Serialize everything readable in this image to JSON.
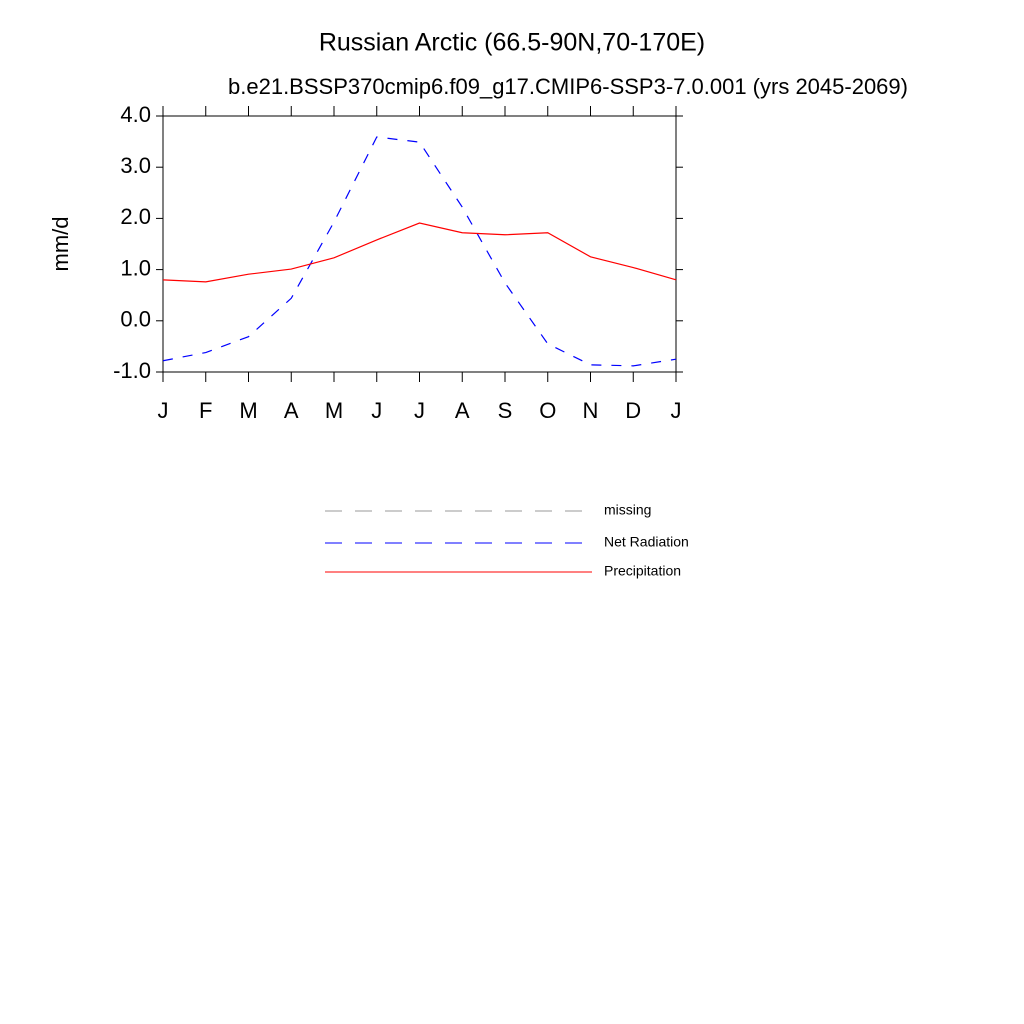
{
  "chart_data": {
    "type": "line",
    "title": "Russian Arctic (66.5-90N,70-170E)",
    "subtitle": "b.e21.BSSP370cmip6.f09_g17.CMIP6-SSP3-7.0.001 (yrs 2045-2069)",
    "y_label": "mm/d",
    "categories": [
      "J",
      "F",
      "M",
      "A",
      "M",
      "J",
      "J",
      "A",
      "S",
      "O",
      "N",
      "D",
      "J"
    ],
    "series": [
      {
        "name": "missing",
        "color": "#999999",
        "line_style": "dashed",
        "values": [
          null,
          null,
          null,
          null,
          null,
          null,
          null,
          null,
          null,
          null,
          null,
          null,
          null
        ]
      },
      {
        "name": "Net Radiation",
        "color": "#0000ff",
        "line_style": "dashed",
        "values": [
          -0.78,
          -0.62,
          -0.31,
          0.44,
          1.93,
          3.59,
          3.49,
          2.22,
          0.74,
          -0.45,
          -0.86,
          -0.88,
          -0.75
        ]
      },
      {
        "name": "Precipitation",
        "color": "#ff0000",
        "line_style": "solid",
        "values": [
          0.8,
          0.76,
          0.91,
          1.01,
          1.23,
          1.58,
          1.91,
          1.72,
          1.68,
          1.72,
          1.25,
          1.04,
          0.8
        ]
      }
    ],
    "ylim": [
      -1,
      4
    ],
    "yticks": [
      {
        "value": -1,
        "label": "-1.0"
      },
      {
        "value": 0,
        "label": "0.0"
      },
      {
        "value": 1,
        "label": "1.0"
      },
      {
        "value": 2,
        "label": "2.0"
      },
      {
        "value": 3,
        "label": "3.0"
      },
      {
        "value": 4,
        "label": "4.0"
      }
    ],
    "grid": false
  }
}
